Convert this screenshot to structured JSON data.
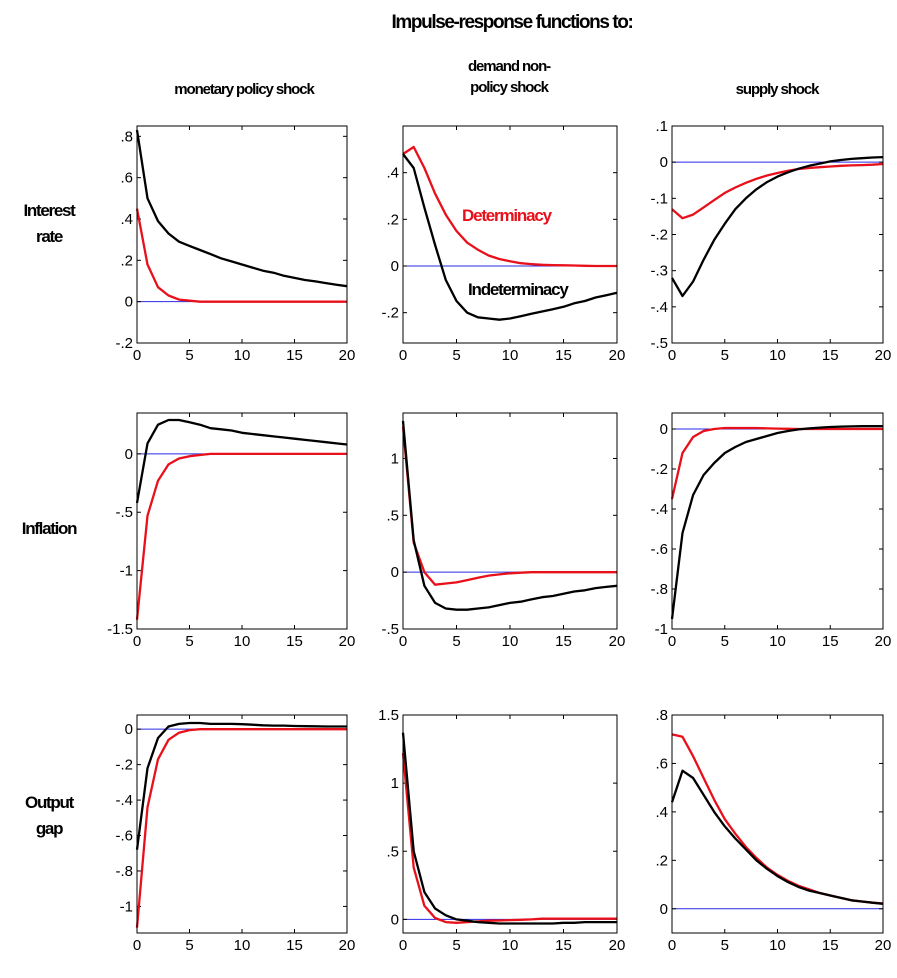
{
  "title": "Impulse-response functions to:",
  "columns": [
    {
      "lines": [
        "monetary policy shock"
      ]
    },
    {
      "lines": [
        "demand non-",
        "policy shock"
      ]
    },
    {
      "lines": [
        "supply shock"
      ]
    }
  ],
  "rows": [
    {
      "lines": [
        "Interest",
        "rate"
      ]
    },
    {
      "lines": [
        "Inflation"
      ]
    },
    {
      "lines": [
        "Output",
        "gap"
      ]
    }
  ],
  "legend": {
    "determinacy": "Determinacy",
    "indeterminacy": "Indeterminacy"
  },
  "colors": {
    "determinacy": "#e8101a",
    "indeterminacy": "#000000",
    "zero_line": "#2a2ae6"
  },
  "chart_data": [
    {
      "type": "line",
      "row": "Interest rate",
      "column": "monetary policy shock",
      "xlim": [
        0,
        20
      ],
      "ylim": [
        -0.2,
        0.85
      ],
      "xticks": [
        0,
        5,
        10,
        15,
        20
      ],
      "yticks": [
        -0.2,
        0,
        0.2,
        0.4,
        0.6,
        0.8
      ],
      "x": [
        0,
        1,
        2,
        3,
        4,
        5,
        6,
        7,
        8,
        9,
        10,
        11,
        12,
        13,
        14,
        15,
        16,
        17,
        18,
        19,
        20
      ],
      "series": [
        {
          "name": "Determinacy",
          "values": [
            0.45,
            0.18,
            0.07,
            0.03,
            0.01,
            0.005,
            0,
            0,
            0,
            0,
            0,
            0,
            0,
            0,
            0,
            0,
            0,
            0,
            0,
            0,
            0
          ]
        },
        {
          "name": "Indeterminacy",
          "values": [
            0.83,
            0.5,
            0.39,
            0.33,
            0.29,
            0.27,
            0.25,
            0.23,
            0.21,
            0.195,
            0.18,
            0.165,
            0.15,
            0.14,
            0.125,
            0.115,
            0.105,
            0.098,
            0.09,
            0.082,
            0.075
          ]
        }
      ]
    },
    {
      "type": "line",
      "row": "Interest rate",
      "column": "demand non-policy shock",
      "xlim": [
        0,
        20
      ],
      "ylim": [
        -0.33,
        0.6
      ],
      "xticks": [
        0,
        5,
        10,
        15,
        20
      ],
      "yticks": [
        -0.2,
        0,
        0.2,
        0.4
      ],
      "x": [
        0,
        1,
        2,
        3,
        4,
        5,
        6,
        7,
        8,
        9,
        10,
        11,
        12,
        13,
        14,
        15,
        16,
        17,
        18,
        19,
        20
      ],
      "series": [
        {
          "name": "Determinacy",
          "values": [
            0.48,
            0.51,
            0.42,
            0.31,
            0.22,
            0.15,
            0.1,
            0.07,
            0.045,
            0.03,
            0.02,
            0.012,
            0.008,
            0.005,
            0.004,
            0.003,
            0.002,
            0.001,
            0,
            0,
            0
          ]
        },
        {
          "name": "Indeterminacy",
          "values": [
            0.48,
            0.42,
            0.25,
            0.09,
            -0.06,
            -0.15,
            -0.2,
            -0.22,
            -0.225,
            -0.23,
            -0.225,
            -0.215,
            -0.205,
            -0.195,
            -0.185,
            -0.175,
            -0.16,
            -0.15,
            -0.135,
            -0.125,
            -0.115
          ]
        }
      ]
    },
    {
      "type": "line",
      "row": "Interest rate",
      "column": "supply shock",
      "xlim": [
        0,
        20
      ],
      "ylim": [
        -0.5,
        0.1
      ],
      "xticks": [
        0,
        5,
        10,
        15,
        20
      ],
      "yticks": [
        -0.5,
        -0.4,
        -0.3,
        -0.2,
        -0.1,
        0,
        0.1
      ],
      "x": [
        0,
        1,
        2,
        3,
        4,
        5,
        6,
        7,
        8,
        9,
        10,
        11,
        12,
        13,
        14,
        15,
        16,
        17,
        18,
        19,
        20
      ],
      "series": [
        {
          "name": "Determinacy",
          "values": [
            -0.13,
            -0.155,
            -0.145,
            -0.125,
            -0.105,
            -0.085,
            -0.07,
            -0.057,
            -0.046,
            -0.037,
            -0.03,
            -0.024,
            -0.019,
            -0.016,
            -0.014,
            -0.012,
            -0.01,
            -0.009,
            -0.008,
            -0.007,
            -0.005
          ]
        },
        {
          "name": "Indeterminacy",
          "values": [
            -0.32,
            -0.37,
            -0.33,
            -0.27,
            -0.215,
            -0.17,
            -0.13,
            -0.1,
            -0.075,
            -0.055,
            -0.04,
            -0.028,
            -0.018,
            -0.01,
            -0.004,
            0.002,
            0.006,
            0.009,
            0.011,
            0.013,
            0.014
          ]
        }
      ]
    },
    {
      "type": "line",
      "row": "Inflation",
      "column": "monetary policy shock",
      "xlim": [
        0,
        20
      ],
      "ylim": [
        -1.5,
        0.35
      ],
      "xticks": [
        0,
        5,
        10,
        15,
        20
      ],
      "yticks": [
        -1.5,
        -1,
        -0.5,
        0
      ],
      "x": [
        0,
        1,
        2,
        3,
        4,
        5,
        6,
        7,
        8,
        9,
        10,
        11,
        12,
        13,
        14,
        15,
        16,
        17,
        18,
        19,
        20
      ],
      "series": [
        {
          "name": "Determinacy",
          "values": [
            -1.42,
            -0.53,
            -0.23,
            -0.09,
            -0.04,
            -0.02,
            -0.01,
            0,
            0,
            0,
            0,
            0,
            0,
            0,
            0,
            0,
            0,
            0,
            0,
            0,
            0
          ]
        },
        {
          "name": "Indeterminacy",
          "values": [
            -0.42,
            0.09,
            0.25,
            0.29,
            0.29,
            0.27,
            0.25,
            0.22,
            0.21,
            0.2,
            0.18,
            0.17,
            0.16,
            0.15,
            0.14,
            0.13,
            0.12,
            0.11,
            0.1,
            0.09,
            0.08
          ]
        }
      ]
    },
    {
      "type": "line",
      "row": "Inflation",
      "column": "demand non-policy shock",
      "xlim": [
        0,
        20
      ],
      "ylim": [
        -0.5,
        1.4
      ],
      "xticks": [
        0,
        5,
        10,
        15,
        20
      ],
      "yticks": [
        -0.5,
        0,
        0.5,
        1
      ],
      "x": [
        0,
        1,
        2,
        3,
        4,
        5,
        6,
        7,
        8,
        9,
        10,
        11,
        12,
        13,
        14,
        15,
        16,
        17,
        18,
        19,
        20
      ],
      "series": [
        {
          "name": "Determinacy",
          "values": [
            1.28,
            0.26,
            0,
            -0.11,
            -0.1,
            -0.09,
            -0.07,
            -0.05,
            -0.03,
            -0.02,
            -0.01,
            -0.005,
            0,
            0,
            0,
            0,
            0,
            0,
            0,
            0,
            0
          ]
        },
        {
          "name": "Indeterminacy",
          "values": [
            1.33,
            0.28,
            -0.12,
            -0.27,
            -0.32,
            -0.33,
            -0.33,
            -0.32,
            -0.31,
            -0.29,
            -0.27,
            -0.26,
            -0.24,
            -0.22,
            -0.21,
            -0.19,
            -0.17,
            -0.16,
            -0.14,
            -0.13,
            -0.12
          ]
        }
      ]
    },
    {
      "type": "line",
      "row": "Inflation",
      "column": "supply shock",
      "xlim": [
        0,
        20
      ],
      "ylim": [
        -1.0,
        0.08
      ],
      "xticks": [
        0,
        5,
        10,
        15,
        20
      ],
      "yticks": [
        -1,
        -0.8,
        -0.6,
        -0.4,
        -0.2,
        0
      ],
      "x": [
        0,
        1,
        2,
        3,
        4,
        5,
        6,
        7,
        8,
        9,
        10,
        11,
        12,
        13,
        14,
        15,
        16,
        17,
        18,
        19,
        20
      ],
      "series": [
        {
          "name": "Determinacy",
          "values": [
            -0.35,
            -0.12,
            -0.04,
            -0.01,
            0,
            0.005,
            0.005,
            0.005,
            0.005,
            0.003,
            0.002,
            0.001,
            0,
            0,
            0,
            0,
            0,
            0,
            0,
            0,
            0
          ]
        },
        {
          "name": "Indeterminacy",
          "values": [
            -0.95,
            -0.52,
            -0.33,
            -0.23,
            -0.17,
            -0.12,
            -0.09,
            -0.065,
            -0.05,
            -0.035,
            -0.02,
            -0.01,
            -0.002,
            0.003,
            0.007,
            0.01,
            0.012,
            0.013,
            0.014,
            0.014,
            0.014
          ]
        }
      ]
    },
    {
      "type": "line",
      "row": "Output gap",
      "column": "monetary policy shock",
      "xlim": [
        0,
        20
      ],
      "ylim": [
        -1.15,
        0.08
      ],
      "xticks": [
        0,
        5,
        10,
        15,
        20
      ],
      "yticks": [
        -1,
        -0.8,
        -0.6,
        -0.4,
        -0.2,
        0
      ],
      "x": [
        0,
        1,
        2,
        3,
        4,
        5,
        6,
        7,
        8,
        9,
        10,
        11,
        12,
        13,
        14,
        15,
        16,
        17,
        18,
        19,
        20
      ],
      "series": [
        {
          "name": "Determinacy",
          "values": [
            -1.12,
            -0.44,
            -0.17,
            -0.06,
            -0.02,
            -0.005,
            0,
            0,
            0,
            0,
            0,
            0,
            0,
            0,
            0,
            0,
            0,
            0,
            0,
            0,
            0
          ]
        },
        {
          "name": "Indeterminacy",
          "values": [
            -0.68,
            -0.22,
            -0.05,
            0.015,
            0.03,
            0.035,
            0.035,
            0.03,
            0.03,
            0.03,
            0.028,
            0.025,
            0.022,
            0.02,
            0.02,
            0.018,
            0.017,
            0.016,
            0.015,
            0.015,
            0.015
          ]
        }
      ]
    },
    {
      "type": "line",
      "row": "Output gap",
      "column": "demand non-policy shock",
      "xlim": [
        0,
        20
      ],
      "ylim": [
        -0.1,
        1.5
      ],
      "xticks": [
        0,
        5,
        10,
        15,
        20
      ],
      "yticks": [
        0,
        0.5,
        1,
        1.5
      ],
      "x": [
        0,
        1,
        2,
        3,
        4,
        5,
        6,
        7,
        8,
        9,
        10,
        11,
        12,
        13,
        14,
        15,
        16,
        17,
        18,
        19,
        20
      ],
      "series": [
        {
          "name": "Determinacy",
          "values": [
            1.22,
            0.38,
            0.1,
            0.01,
            -0.02,
            -0.025,
            -0.02,
            -0.015,
            -0.01,
            -0.008,
            -0.005,
            -0.003,
            0,
            0.005,
            0.005,
            0.005,
            0.005,
            0.005,
            0.005,
            0.005,
            0.005
          ]
        },
        {
          "name": "Indeterminacy",
          "values": [
            1.37,
            0.5,
            0.2,
            0.08,
            0.03,
            0.0,
            -0.01,
            -0.02,
            -0.025,
            -0.03,
            -0.03,
            -0.03,
            -0.03,
            -0.03,
            -0.03,
            -0.025,
            -0.025,
            -0.02,
            -0.02,
            -0.02,
            -0.02
          ]
        }
      ]
    },
    {
      "type": "line",
      "row": "Output gap",
      "column": "supply shock",
      "xlim": [
        0,
        20
      ],
      "ylim": [
        -0.1,
        0.8
      ],
      "xticks": [
        0,
        5,
        10,
        15,
        20
      ],
      "yticks": [
        0,
        0.2,
        0.4,
        0.6,
        0.8
      ],
      "x": [
        0,
        1,
        2,
        3,
        4,
        5,
        6,
        7,
        8,
        9,
        10,
        11,
        12,
        13,
        14,
        15,
        16,
        17,
        18,
        19,
        20
      ],
      "series": [
        {
          "name": "Determinacy",
          "values": [
            0.72,
            0.71,
            0.63,
            0.54,
            0.45,
            0.37,
            0.31,
            0.255,
            0.21,
            0.17,
            0.14,
            0.115,
            0.095,
            0.08,
            0.065,
            0.055,
            0.045,
            0.035,
            0.03,
            0.025,
            0.022
          ]
        },
        {
          "name": "Indeterminacy",
          "values": [
            0.44,
            0.57,
            0.54,
            0.47,
            0.4,
            0.34,
            0.29,
            0.245,
            0.2,
            0.165,
            0.135,
            0.11,
            0.09,
            0.075,
            0.065,
            0.055,
            0.045,
            0.035,
            0.03,
            0.025,
            0.02
          ]
        }
      ]
    }
  ]
}
